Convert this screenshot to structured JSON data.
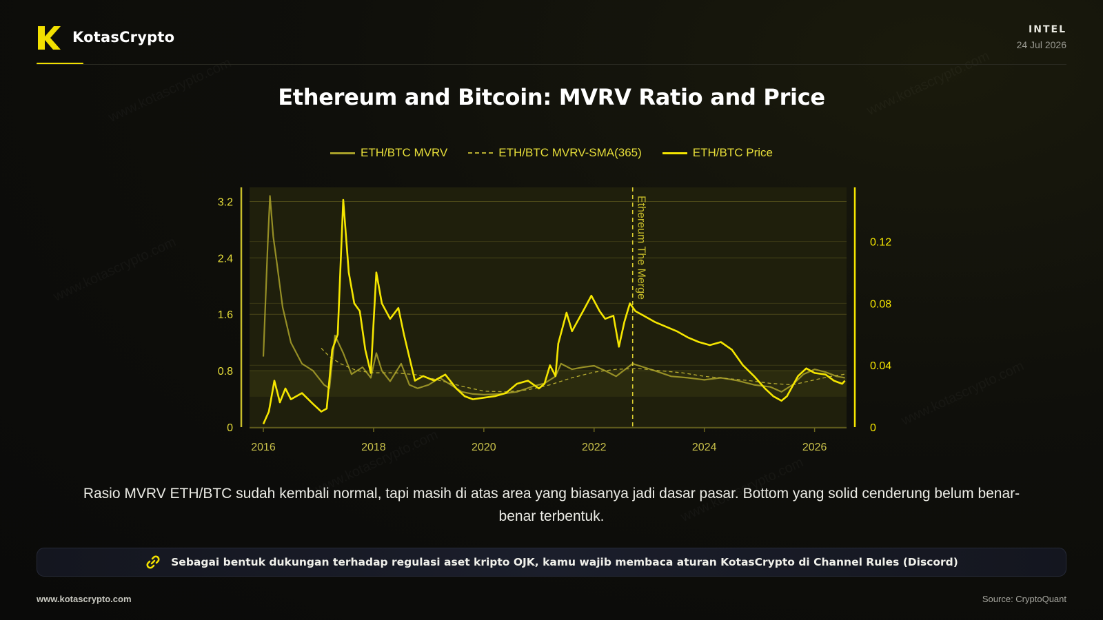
{
  "brand": {
    "name": "KotasCrypto"
  },
  "header": {
    "section": "INTEL",
    "date": "24 Jul 2026"
  },
  "watermark": "www.kotascrypto.com",
  "chart_data": {
    "type": "line",
    "title": "Ethereum and Bitcoin: MVRV Ratio and Price",
    "left_axis": {
      "ticks": [
        "0",
        "0.8",
        "1.6",
        "2.4",
        "3.2"
      ],
      "range": [
        0,
        3.4
      ]
    },
    "right_axis": {
      "ticks": [
        "0",
        "0.04",
        "0.08",
        "0.12"
      ],
      "range": [
        0,
        0.155
      ]
    },
    "x_axis": {
      "ticks": [
        "2016",
        "2018",
        "2020",
        "2022",
        "2024",
        "2026"
      ],
      "range": [
        2015.75,
        2026.58
      ]
    },
    "annotation": {
      "label": "Ethereum The Merge",
      "x": 2022.7
    },
    "shaded_band": {
      "from": 0.43,
      "to": 0.8,
      "axis": "left"
    },
    "series": [
      {
        "name": "ETH/BTC MVRV",
        "axis": "left",
        "color": "#aaa22a",
        "style": "solid",
        "points": [
          [
            2016.0,
            1.0
          ],
          [
            2016.08,
            2.6
          ],
          [
            2016.12,
            3.28
          ],
          [
            2016.18,
            2.7
          ],
          [
            2016.25,
            2.3
          ],
          [
            2016.35,
            1.7
          ],
          [
            2016.5,
            1.2
          ],
          [
            2016.7,
            0.9
          ],
          [
            2016.9,
            0.8
          ],
          [
            2017.1,
            0.6
          ],
          [
            2017.2,
            0.55
          ],
          [
            2017.3,
            1.3
          ],
          [
            2017.45,
            1.05
          ],
          [
            2017.6,
            0.75
          ],
          [
            2017.8,
            0.85
          ],
          [
            2017.95,
            0.7
          ],
          [
            2018.05,
            1.05
          ],
          [
            2018.15,
            0.8
          ],
          [
            2018.3,
            0.65
          ],
          [
            2018.5,
            0.9
          ],
          [
            2018.65,
            0.6
          ],
          [
            2018.8,
            0.55
          ],
          [
            2019.0,
            0.6
          ],
          [
            2019.2,
            0.7
          ],
          [
            2019.4,
            0.6
          ],
          [
            2019.6,
            0.5
          ],
          [
            2019.8,
            0.47
          ],
          [
            2020.0,
            0.46
          ],
          [
            2020.3,
            0.47
          ],
          [
            2020.6,
            0.5
          ],
          [
            2020.9,
            0.58
          ],
          [
            2021.1,
            0.62
          ],
          [
            2021.3,
            0.72
          ],
          [
            2021.4,
            0.9
          ],
          [
            2021.6,
            0.82
          ],
          [
            2021.8,
            0.85
          ],
          [
            2022.0,
            0.87
          ],
          [
            2022.2,
            0.8
          ],
          [
            2022.4,
            0.72
          ],
          [
            2022.6,
            0.84
          ],
          [
            2022.7,
            0.9
          ],
          [
            2022.9,
            0.85
          ],
          [
            2023.1,
            0.8
          ],
          [
            2023.4,
            0.72
          ],
          [
            2023.7,
            0.7
          ],
          [
            2024.0,
            0.67
          ],
          [
            2024.3,
            0.7
          ],
          [
            2024.6,
            0.66
          ],
          [
            2024.9,
            0.6
          ],
          [
            2025.2,
            0.57
          ],
          [
            2025.4,
            0.5
          ],
          [
            2025.6,
            0.6
          ],
          [
            2025.8,
            0.75
          ],
          [
            2026.0,
            0.82
          ],
          [
            2026.2,
            0.78
          ],
          [
            2026.4,
            0.72
          ],
          [
            2026.55,
            0.7
          ]
        ]
      },
      {
        "name": "ETH/BTC MVRV-SMA(365)",
        "axis": "left",
        "color": "#b8ae30",
        "style": "dashed",
        "points": [
          [
            2017.05,
            1.12
          ],
          [
            2017.2,
            1.0
          ],
          [
            2017.4,
            0.9
          ],
          [
            2017.7,
            0.8
          ],
          [
            2018.0,
            0.77
          ],
          [
            2018.4,
            0.77
          ],
          [
            2018.8,
            0.74
          ],
          [
            2019.2,
            0.66
          ],
          [
            2019.6,
            0.58
          ],
          [
            2020.0,
            0.51
          ],
          [
            2020.4,
            0.5
          ],
          [
            2020.8,
            0.53
          ],
          [
            2021.2,
            0.6
          ],
          [
            2021.6,
            0.7
          ],
          [
            2022.0,
            0.78
          ],
          [
            2022.4,
            0.82
          ],
          [
            2022.8,
            0.83
          ],
          [
            2023.2,
            0.8
          ],
          [
            2023.6,
            0.77
          ],
          [
            2024.0,
            0.72
          ],
          [
            2024.4,
            0.69
          ],
          [
            2024.8,
            0.66
          ],
          [
            2025.2,
            0.62
          ],
          [
            2025.6,
            0.6
          ],
          [
            2026.0,
            0.67
          ],
          [
            2026.3,
            0.72
          ],
          [
            2026.55,
            0.75
          ]
        ]
      },
      {
        "name": "ETH/BTC Price",
        "axis": "right",
        "color": "#f5e600",
        "style": "solid",
        "points": [
          [
            2016.0,
            0.002
          ],
          [
            2016.1,
            0.01
          ],
          [
            2016.2,
            0.03
          ],
          [
            2016.3,
            0.016
          ],
          [
            2016.4,
            0.025
          ],
          [
            2016.5,
            0.018
          ],
          [
            2016.7,
            0.022
          ],
          [
            2016.9,
            0.015
          ],
          [
            2017.05,
            0.01
          ],
          [
            2017.15,
            0.012
          ],
          [
            2017.25,
            0.05
          ],
          [
            2017.35,
            0.06
          ],
          [
            2017.45,
            0.147
          ],
          [
            2017.55,
            0.1
          ],
          [
            2017.65,
            0.08
          ],
          [
            2017.75,
            0.075
          ],
          [
            2017.85,
            0.05
          ],
          [
            2017.95,
            0.035
          ],
          [
            2018.05,
            0.1
          ],
          [
            2018.15,
            0.08
          ],
          [
            2018.3,
            0.07
          ],
          [
            2018.45,
            0.077
          ],
          [
            2018.55,
            0.06
          ],
          [
            2018.65,
            0.045
          ],
          [
            2018.75,
            0.03
          ],
          [
            2018.9,
            0.033
          ],
          [
            2019.1,
            0.03
          ],
          [
            2019.3,
            0.034
          ],
          [
            2019.5,
            0.025
          ],
          [
            2019.65,
            0.02
          ],
          [
            2019.8,
            0.018
          ],
          [
            2020.0,
            0.019
          ],
          [
            2020.2,
            0.02
          ],
          [
            2020.4,
            0.022
          ],
          [
            2020.6,
            0.028
          ],
          [
            2020.8,
            0.03
          ],
          [
            2021.0,
            0.025
          ],
          [
            2021.1,
            0.028
          ],
          [
            2021.2,
            0.04
          ],
          [
            2021.3,
            0.033
          ],
          [
            2021.35,
            0.054
          ],
          [
            2021.5,
            0.074
          ],
          [
            2021.6,
            0.062
          ],
          [
            2021.8,
            0.075
          ],
          [
            2021.95,
            0.085
          ],
          [
            2022.1,
            0.075
          ],
          [
            2022.2,
            0.07
          ],
          [
            2022.35,
            0.072
          ],
          [
            2022.45,
            0.052
          ],
          [
            2022.55,
            0.068
          ],
          [
            2022.65,
            0.08
          ],
          [
            2022.75,
            0.075
          ],
          [
            2022.9,
            0.072
          ],
          [
            2023.1,
            0.068
          ],
          [
            2023.3,
            0.065
          ],
          [
            2023.5,
            0.062
          ],
          [
            2023.7,
            0.058
          ],
          [
            2023.9,
            0.055
          ],
          [
            2024.1,
            0.053
          ],
          [
            2024.3,
            0.055
          ],
          [
            2024.5,
            0.05
          ],
          [
            2024.7,
            0.04
          ],
          [
            2024.9,
            0.033
          ],
          [
            2025.1,
            0.025
          ],
          [
            2025.25,
            0.02
          ],
          [
            2025.4,
            0.017
          ],
          [
            2025.5,
            0.02
          ],
          [
            2025.7,
            0.033
          ],
          [
            2025.85,
            0.038
          ],
          [
            2026.0,
            0.035
          ],
          [
            2026.2,
            0.034
          ],
          [
            2026.35,
            0.03
          ],
          [
            2026.5,
            0.028
          ],
          [
            2026.55,
            0.03
          ]
        ]
      }
    ]
  },
  "caption": "Rasio MVRV ETH/BTC sudah kembali normal, tapi masih di atas area yang biasanya jadi dasar pasar. Bottom yang solid cenderung belum benar-benar terbentuk.",
  "notice": {
    "text": "Sebagai bentuk dukungan terhadap regulasi aset kripto OJK, kamu wajib membaca aturan KotasCrypto di Channel Rules (Discord)"
  },
  "footer": {
    "website": "www.kotascrypto.com",
    "source": "Source: CryptoQuant"
  },
  "colors": {
    "accent": "#f2e000",
    "price_line": "#f5e600",
    "mvrv_line": "#aaa22a"
  }
}
